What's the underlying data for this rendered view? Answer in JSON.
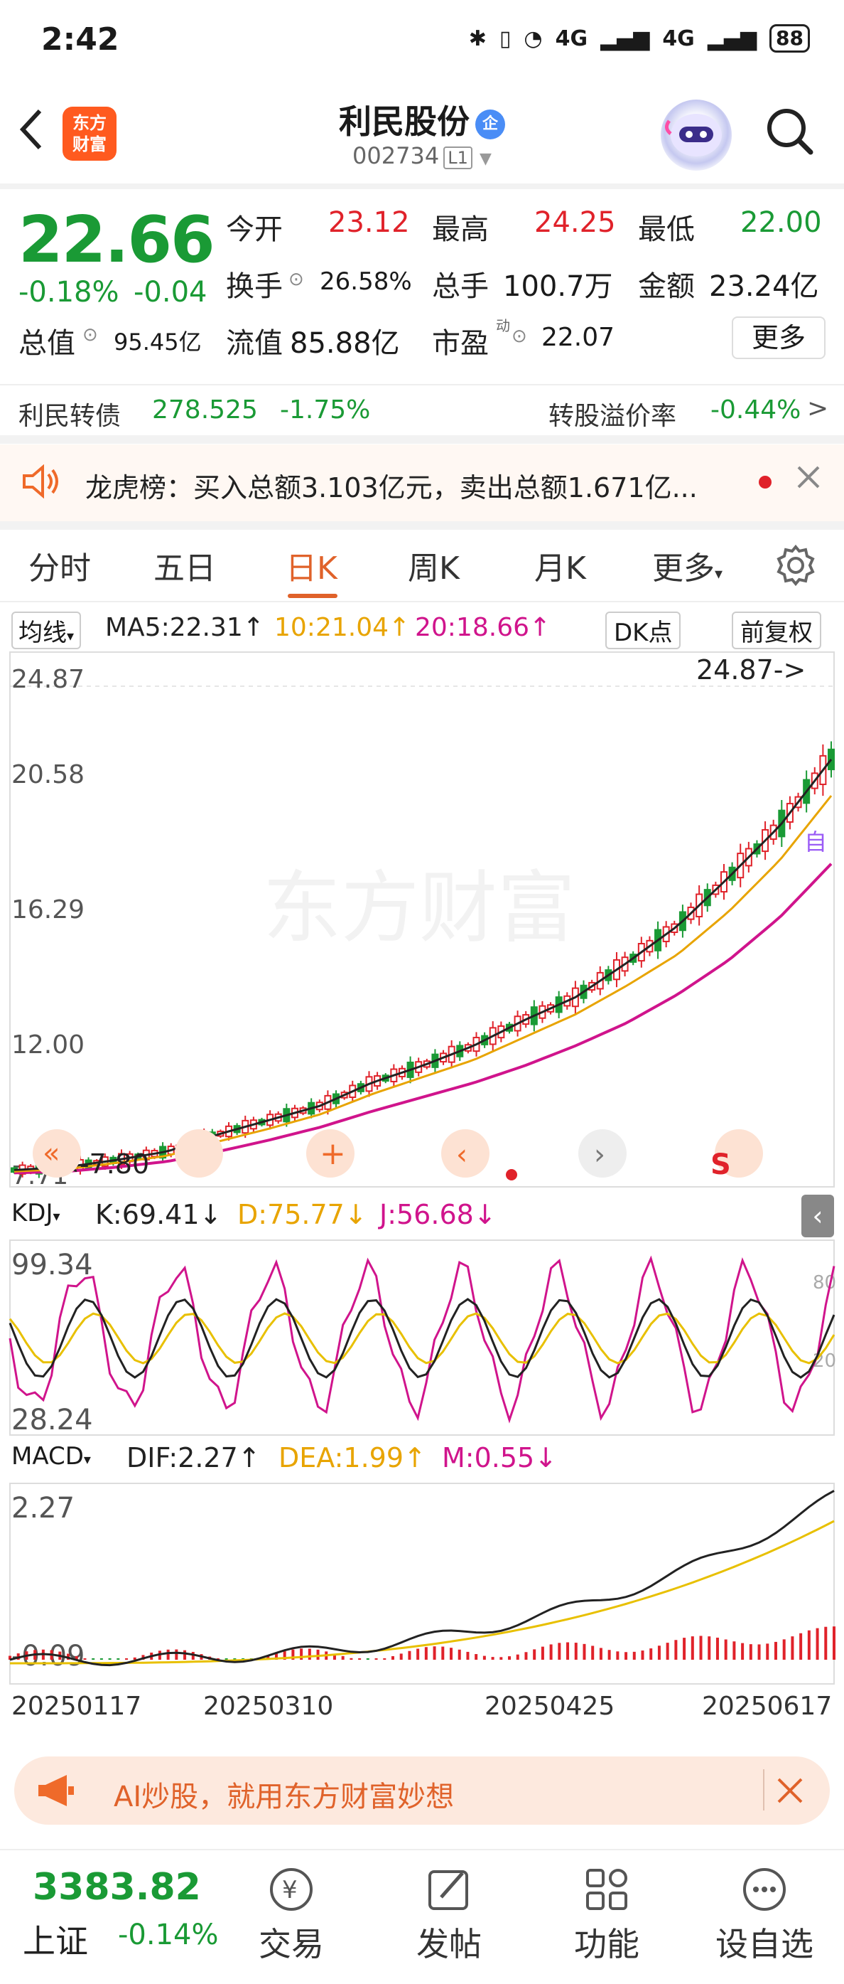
{
  "status_bar": {
    "time": "2:42",
    "network1": "4G",
    "network2": "4G",
    "battery": "88"
  },
  "header": {
    "back_icon": "chevron-left-icon",
    "logo_line1": "东方",
    "logo_line2": "财富",
    "stock_name": "利民股份",
    "badge": "企",
    "stock_code": "002734",
    "level": "L1"
  },
  "quote": {
    "price": "22.66",
    "change_pct": "-0.18%",
    "change": "-0.04",
    "open_label": "今开",
    "open": "23.12",
    "high_label": "最高",
    "high": "24.25",
    "low_label": "最低",
    "low": "22.00",
    "turnover_label": "换手",
    "turnover": "26.58%",
    "volume_label": "总手",
    "volume": "100.7万",
    "amount_label": "金额",
    "amount": "23.24亿",
    "mktcap_label": "总值",
    "mktcap": "95.45亿",
    "float_label": "流值",
    "float": "85.88亿",
    "pe_label": "市盈",
    "pe_sup": "动",
    "pe": "22.07",
    "more": "更多"
  },
  "bond": {
    "name": "利民转债",
    "price": "278.525",
    "change": "-1.75%",
    "premium_label": "转股溢价率",
    "premium": "-0.44%"
  },
  "notice": {
    "text": "龙虎榜：买入总额3.103亿元，卖出总额1.671亿..."
  },
  "tabs": [
    "分时",
    "五日",
    "日K",
    "周K",
    "月K",
    "更多"
  ],
  "ma": {
    "type": "均线",
    "ma5": "MA5:22.31",
    "ma10": "10:21.04",
    "ma20": "20:18.66",
    "dk": "DK点",
    "adjust": "前复权",
    "ma5_color": "#222222",
    "ma10_color": "#e8a400",
    "ma20_color": "#d0148c"
  },
  "kchart": {
    "y_labels": [
      "24.87",
      "20.58",
      "16.29",
      "12.00",
      "7.71"
    ],
    "high_marker": "24.87->",
    "low_marker": "<-7.80",
    "watermark": "东方财富",
    "self_label": "自"
  },
  "kdj": {
    "label": "KDJ",
    "k": "K:69.41",
    "d": "D:75.77",
    "j": "J:56.68",
    "y_top": "99.34",
    "y_bottom": "28.24",
    "r80": "80",
    "r20": "20"
  },
  "macd": {
    "label": "MACD",
    "dif": "DIF:2.27",
    "dea": "DEA:1.99",
    "m": "M:0.55",
    "y_top": "2.27",
    "y_bottom": "-0.09"
  },
  "dates": [
    "20250117",
    "20250310",
    "20250425",
    "20250617"
  ],
  "ad": {
    "text": "AI炒股，就用东方财富妙想"
  },
  "bottom_nav": {
    "index_value": "3383.82",
    "index_name": "上证",
    "index_change": "-0.14%",
    "items": [
      "交易",
      "发帖",
      "功能",
      "设自选"
    ]
  },
  "chart_data": {
    "type": "candlestick",
    "title": "",
    "x_range": [
      "20250117",
      "20250620"
    ],
    "ylim": [
      7.71,
      24.87
    ],
    "series": [
      {
        "name": "MA5",
        "values": [
          7.95,
          8.05,
          8.3,
          8.6,
          9.2,
          9.7,
          10.2,
          11.0,
          11.6,
          12.3,
          13.2,
          14.0,
          15.2,
          16.5,
          18.2,
          20.0,
          22.31
        ]
      },
      {
        "name": "MA10",
        "values": [
          7.9,
          7.98,
          8.2,
          8.45,
          8.95,
          9.4,
          9.9,
          10.6,
          11.2,
          11.8,
          12.6,
          13.4,
          14.4,
          15.5,
          17.0,
          18.8,
          21.04
        ]
      },
      {
        "name": "MA20",
        "values": [
          7.85,
          7.9,
          8.05,
          8.25,
          8.6,
          9.0,
          9.45,
          10.0,
          10.5,
          11.0,
          11.6,
          12.3,
          13.1,
          14.1,
          15.3,
          16.8,
          18.66
        ]
      }
    ],
    "last_close": 22.66,
    "high_marker": 24.87,
    "low_marker": 7.8
  }
}
